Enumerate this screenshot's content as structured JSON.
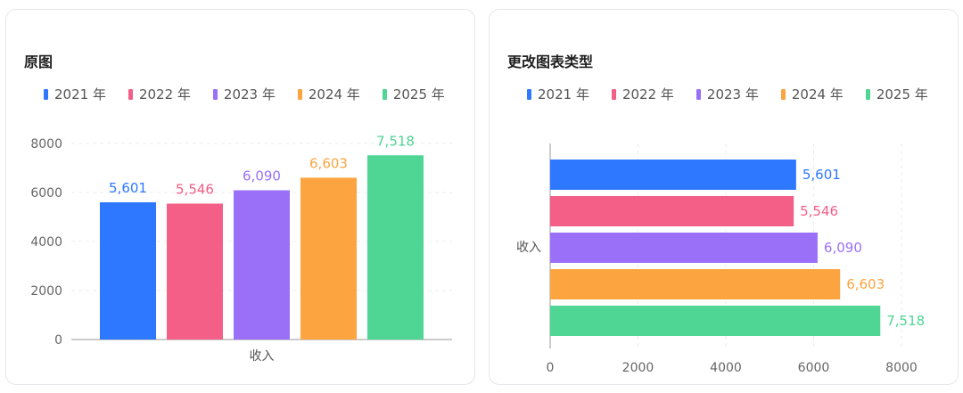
{
  "colors": [
    "#2d78ff",
    "#f35f86",
    "#9a70f8",
    "#fca43f",
    "#4fd594"
  ],
  "left_card": {
    "title": "原图"
  },
  "right_card": {
    "title": "更改图表类型"
  },
  "chart_data": [
    {
      "type": "bar",
      "orientation": "vertical",
      "title": "原图",
      "categories": [
        "收入"
      ],
      "series": [
        {
          "name": "2021 年",
          "values": [
            5601
          ],
          "label": "5,601"
        },
        {
          "name": "2022 年",
          "values": [
            5546
          ],
          "label": "5,546"
        },
        {
          "name": "2023 年",
          "values": [
            6090
          ],
          "label": "6,090"
        },
        {
          "name": "2024 年",
          "values": [
            6603
          ],
          "label": "6,603"
        },
        {
          "name": "2025 年",
          "values": [
            7518
          ],
          "label": "7,518"
        }
      ],
      "ylim": [
        0,
        8000
      ],
      "yticks": [
        "0",
        "2000",
        "4000",
        "6000",
        "8000"
      ],
      "grid": true,
      "legend": "top-left"
    },
    {
      "type": "bar",
      "orientation": "horizontal",
      "title": "更改图表类型",
      "categories": [
        "收入"
      ],
      "series": [
        {
          "name": "2021 年",
          "values": [
            5601
          ],
          "label": "5,601"
        },
        {
          "name": "2022 年",
          "values": [
            5546
          ],
          "label": "5,546"
        },
        {
          "name": "2023 年",
          "values": [
            6090
          ],
          "label": "6,090"
        },
        {
          "name": "2024 年",
          "values": [
            6603
          ],
          "label": "6,603"
        },
        {
          "name": "2025 年",
          "values": [
            7518
          ],
          "label": "7,518"
        }
      ],
      "xlim": [
        0,
        8000
      ],
      "xticks": [
        "0",
        "2000",
        "4000",
        "6000",
        "8000"
      ],
      "grid": true,
      "legend": "top-left"
    }
  ]
}
